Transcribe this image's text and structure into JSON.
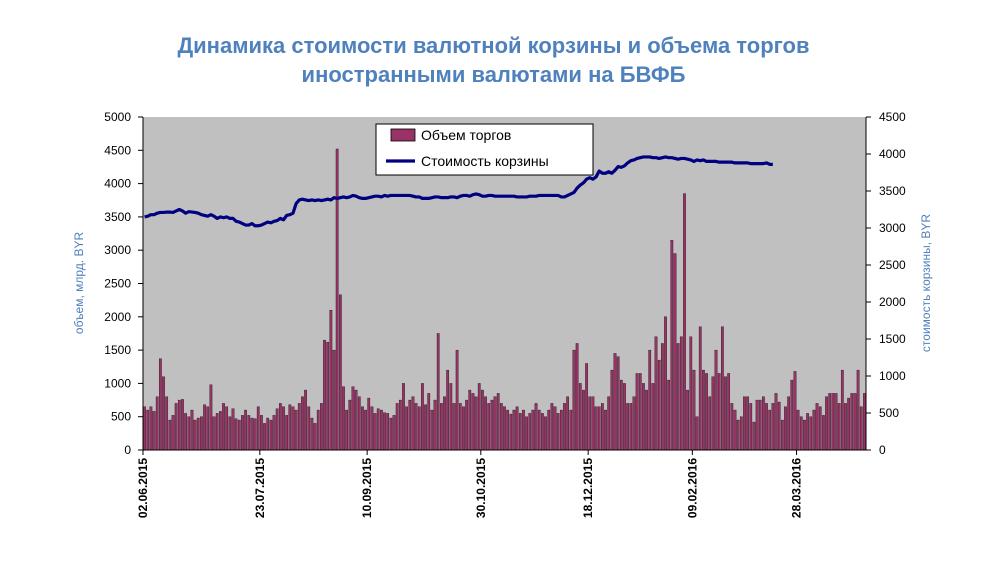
{
  "chart_data": {
    "type": "bar+line",
    "title_lines": [
      "Динамика стоимости валютной корзины и объема торгов",
      "иностранными валютами на БВФБ"
    ],
    "ylabel_left": "объем, млрд. BYR",
    "ylabel_right": "стоимость корзины, BYR",
    "ylim_left": [
      0,
      5000
    ],
    "ylim_right": [
      0,
      4500
    ],
    "yticks_left": [
      "0",
      "500",
      "1000",
      "1500",
      "2000",
      "2500",
      "3000",
      "3500",
      "4000",
      "4500",
      "5000"
    ],
    "yticks_right": [
      "0",
      "500",
      "1000",
      "1500",
      "2000",
      "2500",
      "3000",
      "3500",
      "4000",
      "4500"
    ],
    "x_tick_labels": [
      "02.06.2015",
      "23.07.2015",
      "10.09.2015",
      "30.10.2015",
      "18.12.2015",
      "09.02.2016",
      "28.03.2016"
    ],
    "x_tick_index": [
      0,
      37,
      71,
      107,
      141,
      174,
      207
    ],
    "legend": [
      "Объем торгов",
      "Стоимость корзины"
    ],
    "legend_position": "top-center",
    "colors": {
      "bars": "#993366",
      "line": "#000080",
      "plot_bg": "#c0c0c0",
      "title": "#4f81bd"
    },
    "series": [
      {
        "name": "Объем торгов",
        "type": "bar",
        "axis": "left",
        "values": [
          650,
          600,
          650,
          580,
          800,
          1370,
          1100,
          800,
          450,
          520,
          700,
          750,
          760,
          550,
          500,
          600,
          450,
          480,
          500,
          680,
          650,
          980,
          500,
          550,
          580,
          700,
          650,
          500,
          620,
          470,
          450,
          520,
          600,
          520,
          480,
          470,
          650,
          520,
          400,
          480,
          450,
          520,
          620,
          700,
          650,
          520,
          680,
          650,
          600,
          700,
          800,
          900,
          650,
          480,
          400,
          600,
          700,
          1650,
          1620,
          2100,
          1500,
          4520,
          2330,
          950,
          600,
          750,
          950,
          900,
          800,
          650,
          600,
          780,
          650,
          550,
          620,
          600,
          560,
          550,
          480,
          520,
          700,
          750,
          1000,
          650,
          750,
          800,
          700,
          650,
          1000,
          680,
          850,
          600,
          750,
          1750,
          700,
          800,
          1200,
          1000,
          700,
          1500,
          700,
          650,
          750,
          900,
          850,
          800,
          1000,
          900,
          800,
          700,
          750,
          800,
          850,
          700,
          650,
          600,
          540,
          600,
          650,
          550,
          600,
          500,
          550,
          600,
          700,
          600,
          550,
          500,
          600,
          700,
          650,
          550,
          600,
          700,
          800,
          600,
          1500,
          1600,
          1000,
          900,
          1300,
          800,
          800,
          650,
          650,
          700,
          600,
          800,
          1200,
          1450,
          1400,
          1050,
          1000,
          700,
          700,
          800,
          1150,
          1150,
          1000,
          900,
          1500,
          1000,
          1700,
          1350,
          1600,
          2000,
          1050,
          3150,
          2950,
          1600,
          1700,
          3850,
          900,
          1700,
          1200,
          500,
          1850,
          1200,
          1150,
          800,
          1100,
          1500,
          1150,
          1850,
          1100,
          1150,
          700,
          600,
          450,
          500,
          800,
          800,
          700,
          420,
          750,
          750,
          800,
          700,
          600,
          700,
          850,
          720,
          450,
          650,
          800,
          1050,
          1180,
          600,
          500,
          450,
          550,
          500,
          600,
          700,
          650,
          520,
          800,
          850,
          850,
          850,
          700,
          1200,
          700,
          780,
          850,
          850,
          1200,
          650,
          850
        ]
      },
      {
        "name": "Стоимость корзины",
        "type": "line",
        "axis": "right",
        "values": [
          3150,
          3160,
          3180,
          3180,
          3200,
          3210,
          3210,
          3215,
          3215,
          3210,
          3230,
          3250,
          3230,
          3200,
          3220,
          3215,
          3210,
          3200,
          3180,
          3170,
          3160,
          3180,
          3160,
          3130,
          3150,
          3140,
          3150,
          3130,
          3130,
          3090,
          3080,
          3060,
          3040,
          3040,
          3060,
          3030,
          3030,
          3040,
          3060,
          3080,
          3070,
          3090,
          3100,
          3130,
          3110,
          3170,
          3180,
          3200,
          3330,
          3380,
          3390,
          3380,
          3370,
          3380,
          3370,
          3380,
          3370,
          3380,
          3390,
          3380,
          3410,
          3400,
          3410,
          3420,
          3410,
          3420,
          3440,
          3430,
          3410,
          3400,
          3400,
          3410,
          3420,
          3430,
          3430,
          3420,
          3440,
          3430,
          3440,
          3440,
          3440,
          3440,
          3440,
          3440,
          3440,
          3430,
          3420,
          3420,
          3400,
          3400,
          3400,
          3410,
          3420,
          3420,
          3410,
          3410,
          3410,
          3420,
          3420,
          3410,
          3430,
          3440,
          3440,
          3430,
          3450,
          3460,
          3450,
          3430,
          3430,
          3440,
          3440,
          3430,
          3430,
          3430,
          3430,
          3430,
          3430,
          3430,
          3420,
          3420,
          3420,
          3420,
          3430,
          3430,
          3430,
          3440,
          3440,
          3440,
          3440,
          3440,
          3440,
          3440,
          3420,
          3420,
          3440,
          3460,
          3480,
          3540,
          3580,
          3610,
          3660,
          3680,
          3660,
          3690,
          3770,
          3740,
          3740,
          3760,
          3740,
          3780,
          3830,
          3820,
          3840,
          3880,
          3910,
          3920,
          3940,
          3950,
          3960,
          3960,
          3960,
          3950,
          3950,
          3940,
          3950,
          3960,
          3950,
          3950,
          3940,
          3930,
          3940,
          3940,
          3930,
          3920,
          3900,
          3920,
          3910,
          3920,
          3900,
          3900,
          3900,
          3900,
          3890,
          3890,
          3890,
          3890,
          3890,
          3880,
          3880,
          3880,
          3880,
          3880,
          3870,
          3870,
          3870,
          3870,
          3870,
          3880,
          3860,
          3860
        ]
      }
    ]
  }
}
